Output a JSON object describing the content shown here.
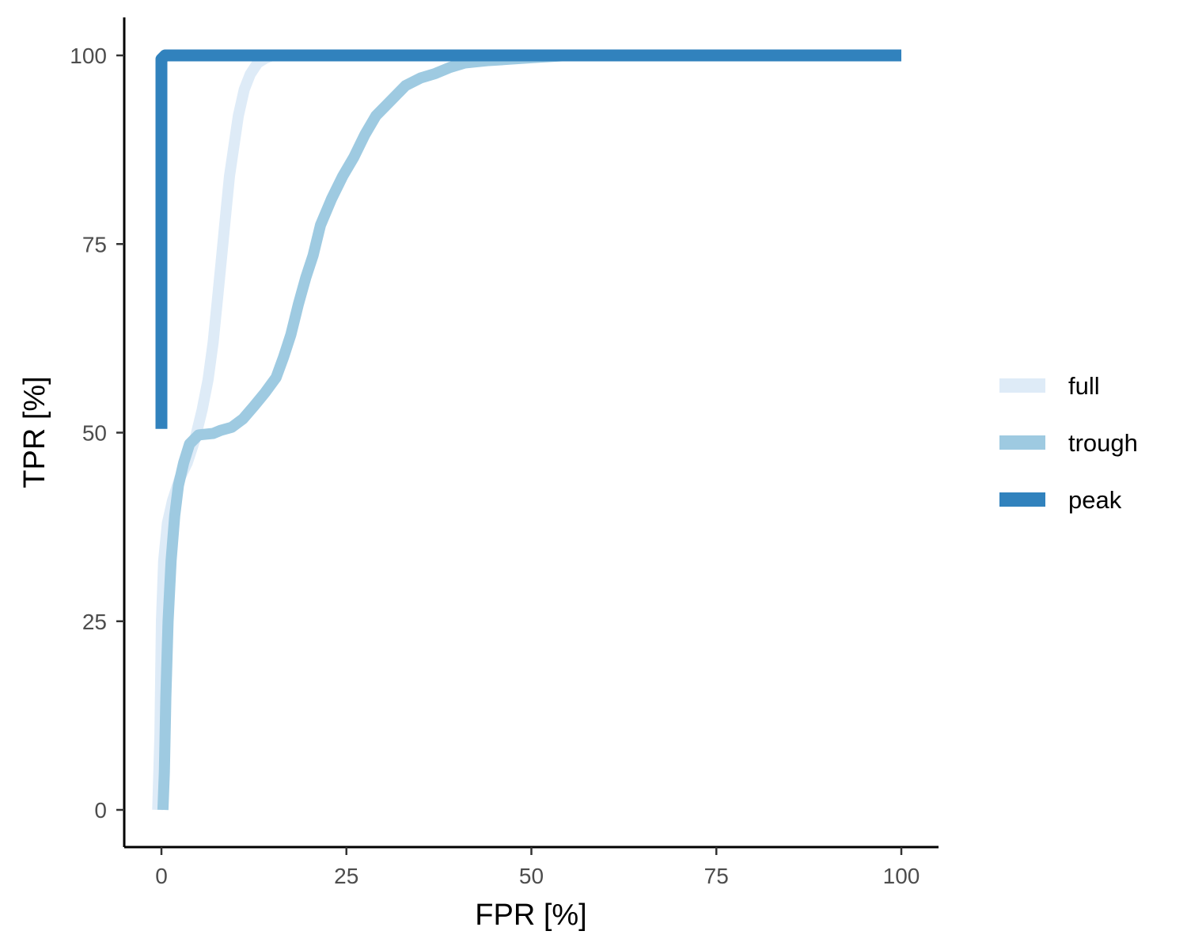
{
  "chart_data": {
    "type": "line",
    "xlabel": "FPR [%]",
    "ylabel": "TPR [%]",
    "xlim": [
      -5,
      105
    ],
    "ylim": [
      -5,
      105
    ],
    "xticks": [
      0,
      25,
      50,
      75,
      100
    ],
    "yticks": [
      0,
      25,
      50,
      75,
      100
    ],
    "grid": false,
    "legend_position": "right",
    "series": [
      {
        "name": "full",
        "color": "#deebf7",
        "points": [
          [
            -0.5,
            0
          ],
          [
            -0.2,
            10
          ],
          [
            0,
            25
          ],
          [
            0.3,
            33
          ],
          [
            0.8,
            38
          ],
          [
            1.5,
            41
          ],
          [
            2.5,
            44
          ],
          [
            3.5,
            46
          ],
          [
            4.5,
            49
          ],
          [
            5.5,
            53
          ],
          [
            6.3,
            57
          ],
          [
            7,
            62
          ],
          [
            7.6,
            68
          ],
          [
            8.2,
            74
          ],
          [
            8.7,
            79
          ],
          [
            9.2,
            84
          ],
          [
            9.8,
            88
          ],
          [
            10.4,
            92
          ],
          [
            11.2,
            95.5
          ],
          [
            12,
            97.5
          ],
          [
            13,
            99
          ],
          [
            14,
            99.6
          ],
          [
            15,
            100
          ],
          [
            18,
            100
          ]
        ]
      },
      {
        "name": "trough",
        "color": "#9ecae1",
        "points": [
          [
            0.2,
            0
          ],
          [
            0.4,
            5
          ],
          [
            0.6,
            15
          ],
          [
            0.9,
            25
          ],
          [
            1.3,
            33
          ],
          [
            1.8,
            39
          ],
          [
            2.3,
            43
          ],
          [
            3,
            46
          ],
          [
            3.8,
            48.5
          ],
          [
            5,
            49.7
          ],
          [
            6,
            49.8
          ],
          [
            7,
            49.9
          ],
          [
            8,
            50.3
          ],
          [
            9.5,
            50.7
          ],
          [
            11,
            51.8
          ],
          [
            12.5,
            53.5
          ],
          [
            14,
            55.3
          ],
          [
            15.5,
            57.3
          ],
          [
            16.5,
            60
          ],
          [
            17.5,
            63
          ],
          [
            18.5,
            67
          ],
          [
            19.5,
            70.5
          ],
          [
            20.5,
            73.5
          ],
          [
            21.5,
            77.5
          ],
          [
            23,
            81
          ],
          [
            24.5,
            84
          ],
          [
            26,
            86.5
          ],
          [
            27.5,
            89.5
          ],
          [
            29,
            92
          ],
          [
            31,
            94
          ],
          [
            33,
            96
          ],
          [
            35,
            97
          ],
          [
            37,
            97.6
          ],
          [
            39,
            98.4
          ],
          [
            41,
            99
          ],
          [
            44,
            99.3
          ],
          [
            47,
            99.5
          ],
          [
            50,
            99.7
          ],
          [
            55,
            100
          ],
          [
            60,
            100
          ]
        ]
      },
      {
        "name": "peak",
        "color": "#3182bd",
        "points": [
          [
            0,
            50.5
          ],
          [
            0,
            99.5
          ],
          [
            0.5,
            100
          ],
          [
            100,
            100
          ]
        ]
      }
    ]
  }
}
